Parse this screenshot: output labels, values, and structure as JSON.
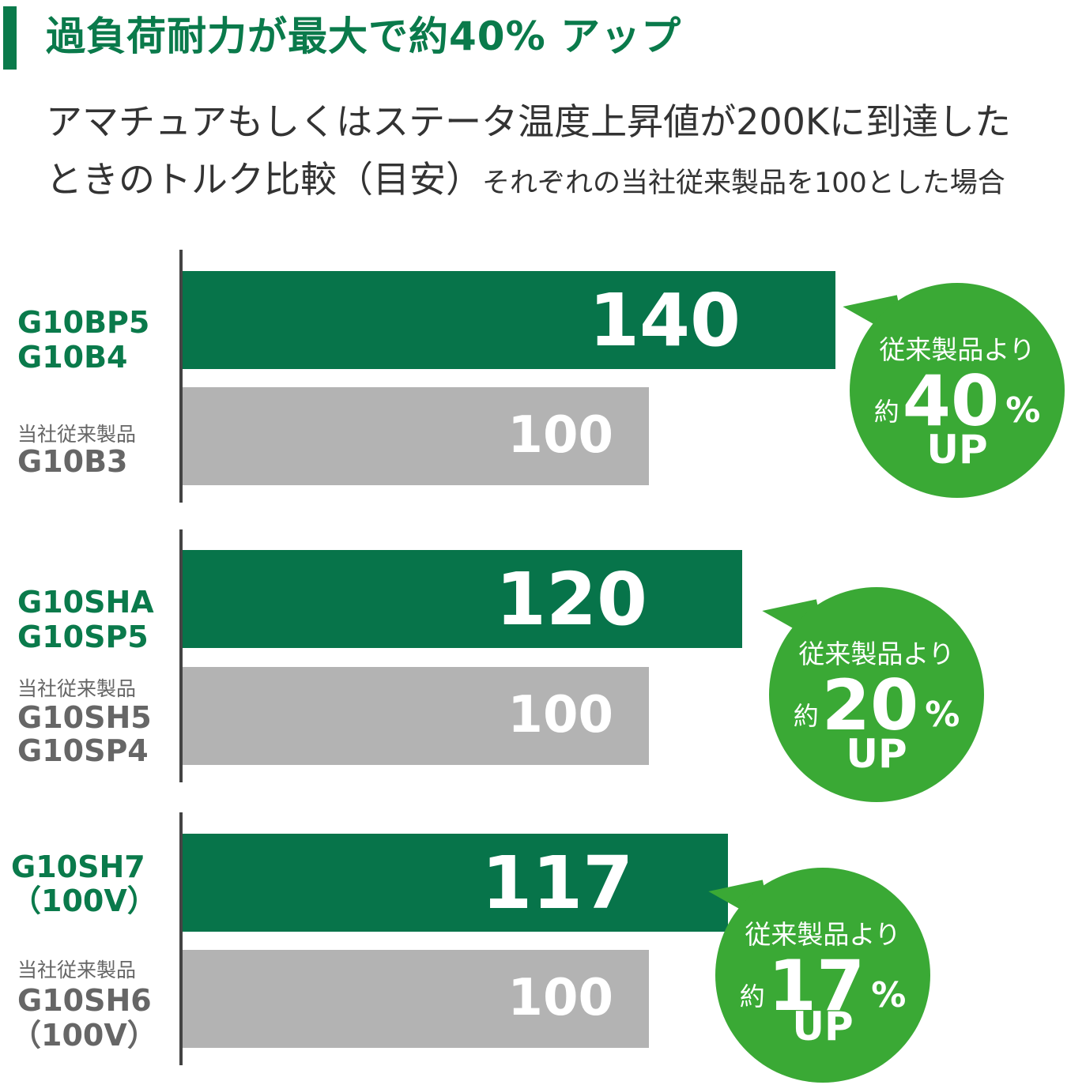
{
  "header": {
    "title": "過負荷耐力が最大で約40% アップ",
    "subtitle_line1": "アマチュアもしくはステータ温度上昇値が200Kに到達した",
    "subtitle_line2_main": "ときのトルク比較（目安）",
    "subtitle_line2_note": "それぞれの当社従来製品を100とした場合"
  },
  "colors": {
    "accent": "#0a7a4b",
    "new_bar": "#07744a",
    "old_bar": "#b3b3b3",
    "bubble": "#3aa935"
  },
  "chart_data": {
    "type": "bar",
    "orientation": "horizontal",
    "xlim": [
      0,
      140
    ],
    "groups": [
      {
        "new_models": [
          "G10BP5",
          "G10B4"
        ],
        "old_caption": "当社従来製品",
        "old_models": [
          "G10B3"
        ],
        "new_value": 140,
        "old_value": 100,
        "bubble": {
          "caption": "従来製品より",
          "prefix": "約",
          "number": "40",
          "percent": "%",
          "up": "UP"
        }
      },
      {
        "new_models": [
          "G10SHA",
          "G10SP5"
        ],
        "old_caption": "当社従来製品",
        "old_models": [
          "G10SH5",
          "G10SP4"
        ],
        "new_value": 120,
        "old_value": 100,
        "bubble": {
          "caption": "従来製品より",
          "prefix": "約",
          "number": "20",
          "percent": "%",
          "up": "UP"
        }
      },
      {
        "new_models": [
          "G10SH7",
          "（100V）"
        ],
        "old_caption": "当社従来製品",
        "old_models": [
          "G10SH6",
          "（100V）"
        ],
        "new_value": 117,
        "old_value": 100,
        "bubble": {
          "caption": "従来製品より",
          "prefix": "約",
          "number": "17",
          "percent": "%",
          "up": "UP"
        }
      }
    ]
  }
}
